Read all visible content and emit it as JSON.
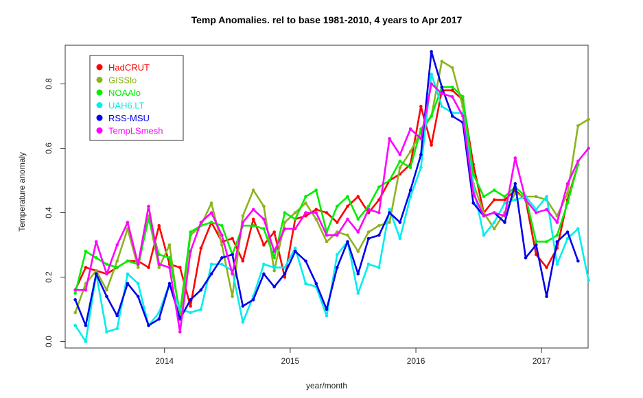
{
  "chart_data": {
    "type": "line",
    "title": "Temp Anomalies. rel to base 1981-2010, 4 years to Apr 2017",
    "xlabel": "year/month",
    "ylabel": "Temperature anomaly",
    "xlim": [
      2013.21,
      2017.37
    ],
    "ylim": [
      -0.02,
      0.92
    ],
    "x_ticks": [
      2014,
      2015,
      2016,
      2017
    ],
    "x_tick_labels": [
      "2014",
      "2015",
      "2016",
      "2017"
    ],
    "y_ticks": [
      0.0,
      0.2,
      0.4,
      0.6,
      0.8
    ],
    "y_tick_labels": [
      "0.0",
      "0.2",
      "0.4",
      "0.6",
      "0.8"
    ],
    "grid": false,
    "legend_position": "top-left",
    "x_start": 2013.29,
    "x_step": 0.0833333,
    "series": [
      {
        "name": "HadCRUT",
        "color": "#ff0000",
        "values": [
          0.16,
          0.23,
          0.22,
          0.21,
          0.23,
          0.25,
          0.25,
          0.23,
          0.36,
          0.24,
          0.23,
          0.11,
          0.29,
          0.37,
          0.31,
          0.32,
          0.25,
          0.38,
          0.3,
          0.34,
          0.2,
          0.38,
          0.39,
          0.41,
          0.4,
          0.37,
          0.42,
          0.45,
          0.4,
          0.44,
          0.5,
          0.52,
          0.55,
          0.73,
          0.61,
          0.78,
          0.78,
          0.75,
          0.55,
          0.4,
          0.44,
          0.44,
          0.47,
          0.44,
          0.27,
          0.23,
          0.29,
          0.44,
          0.55
        ]
      },
      {
        "name": "GISSlo",
        "color": "#8db31f",
        "values": [
          0.09,
          0.18,
          0.22,
          0.16,
          0.25,
          0.35,
          0.23,
          0.39,
          0.23,
          0.3,
          0.07,
          0.33,
          0.36,
          0.43,
          0.3,
          0.14,
          0.39,
          0.47,
          0.42,
          0.22,
          0.37,
          0.4,
          0.43,
          0.38,
          0.31,
          0.34,
          0.33,
          0.28,
          0.34,
          0.36,
          0.37,
          0.54,
          0.59,
          0.65,
          0.7,
          0.87,
          0.85,
          0.73,
          0.49,
          0.4,
          0.35,
          0.4,
          0.46,
          0.45,
          0.45,
          0.44,
          0.39,
          0.46,
          0.67,
          0.69
        ]
      },
      {
        "name": "NOAAlo",
        "color": "#00ee00",
        "values": [
          0.15,
          0.28,
          0.26,
          0.24,
          0.23,
          0.25,
          0.24,
          0.38,
          0.27,
          0.26,
          0.09,
          0.34,
          0.36,
          0.37,
          0.36,
          0.27,
          0.36,
          0.36,
          0.35,
          0.26,
          0.4,
          0.38,
          0.45,
          0.47,
          0.34,
          0.42,
          0.45,
          0.38,
          0.42,
          0.48,
          0.5,
          0.56,
          0.54,
          0.66,
          0.7,
          0.79,
          0.79,
          0.76,
          0.52,
          0.45,
          0.47,
          0.45,
          0.48,
          0.45,
          0.31,
          0.31,
          0.33,
          0.43,
          0.55
        ]
      },
      {
        "name": "UAH6.LT",
        "color": "#00eeee",
        "values": [
          0.05,
          0.0,
          0.21,
          0.03,
          0.04,
          0.21,
          0.18,
          0.05,
          0.09,
          0.18,
          0.1,
          0.09,
          0.1,
          0.24,
          0.24,
          0.22,
          0.06,
          0.14,
          0.24,
          0.23,
          0.23,
          0.29,
          0.18,
          0.17,
          0.08,
          0.27,
          0.31,
          0.15,
          0.24,
          0.23,
          0.41,
          0.32,
          0.45,
          0.54,
          0.83,
          0.73,
          0.71,
          0.71,
          0.48,
          0.33,
          0.37,
          0.43,
          0.44,
          0.45,
          0.41,
          0.45,
          0.24,
          0.32,
          0.35,
          0.19
        ]
      },
      {
        "name": "RSS-MSU",
        "color": "#0000ee",
        "values": [
          0.13,
          0.05,
          0.21,
          0.14,
          0.08,
          0.18,
          0.14,
          0.05,
          0.07,
          0.18,
          0.07,
          0.13,
          0.16,
          0.21,
          0.26,
          0.27,
          0.11,
          0.13,
          0.21,
          0.17,
          0.21,
          0.28,
          0.25,
          0.18,
          0.1,
          0.23,
          0.31,
          0.21,
          0.32,
          0.33,
          0.4,
          0.37,
          0.47,
          0.58,
          0.9,
          0.79,
          0.7,
          0.68,
          0.43,
          0.39,
          0.4,
          0.37,
          0.49,
          0.26,
          0.3,
          0.14,
          0.31,
          0.34,
          0.25
        ]
      },
      {
        "name": "TempLSmesh",
        "color": "#ff00ff",
        "values": [
          0.16,
          0.16,
          0.31,
          0.21,
          0.3,
          0.37,
          0.24,
          0.42,
          0.24,
          0.23,
          0.03,
          0.28,
          0.37,
          0.4,
          0.33,
          0.21,
          0.37,
          0.41,
          0.38,
          0.28,
          0.35,
          0.35,
          0.4,
          0.4,
          0.33,
          0.33,
          0.38,
          0.34,
          0.41,
          0.4,
          0.63,
          0.58,
          0.66,
          0.63,
          0.8,
          0.77,
          0.76,
          0.7,
          0.46,
          0.39,
          0.4,
          0.39,
          0.57,
          0.44,
          0.4,
          0.41,
          0.37,
          0.49,
          0.56,
          0.6
        ]
      }
    ]
  }
}
